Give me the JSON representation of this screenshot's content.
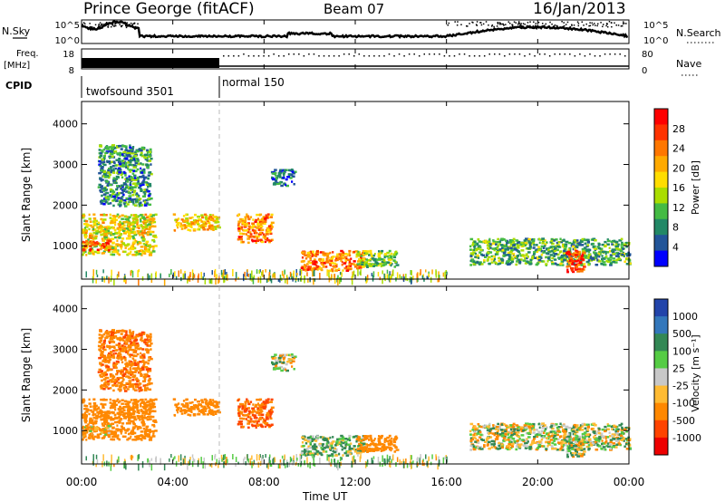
{
  "header": {
    "station": "Prince George (fitACF)",
    "beam": "Beam 07",
    "date": "16/Jan/2013"
  },
  "top_panels": {
    "nsky_label": "N.Sky",
    "nsky_ticks": [
      "10^5",
      "10^0"
    ],
    "nsearch_label": "N.Search",
    "nsearch_ticks": [
      "10^5",
      "10^0"
    ],
    "freq_label_1": "Freq.",
    "freq_label_2": "[MHz]",
    "freq_ticks": [
      "18",
      "8"
    ],
    "nave_label": "Nave",
    "nave_ticks": [
      "80",
      "0"
    ],
    "cpid_label": "CPID",
    "cpid_entries": [
      {
        "name": "twofsound 3501",
        "start_hour": 0
      },
      {
        "name": "normal 150",
        "start_hour": 6
      }
    ]
  },
  "power_panel": {
    "ylabel": "Slant Range [km]",
    "yticks": [
      "4000",
      "3000",
      "2000",
      "1000"
    ],
    "colorbar_label": "Power [dB]",
    "colorbar_ticks": [
      "28",
      "24",
      "20",
      "16",
      "12",
      "8",
      "4"
    ],
    "colors": [
      "#ff0000",
      "#ff3300",
      "#ff7700",
      "#ffaa00",
      "#ffdd00",
      "#aadd00",
      "#44bb44",
      "#228866",
      "#225599",
      "#0000ff"
    ]
  },
  "velocity_panel": {
    "ylabel": "Slant Range [km]",
    "yticks": [
      "4000",
      "3000",
      "2000",
      "1000"
    ],
    "colorbar_label": "Velocity [m s⁻¹]",
    "colorbar_ticks": [
      "1000",
      "500",
      "100",
      "25",
      "-25",
      "-100",
      "-500",
      "-1000"
    ],
    "colors": [
      "#2244aa",
      "#3377bb",
      "#338855",
      "#55cc44",
      "#c8c8c8",
      "#ffbb33",
      "#ff8800",
      "#ff4400",
      "#ee0000"
    ]
  },
  "x_axis": {
    "label": "Time UT",
    "ticks": [
      "00:00",
      "04:00",
      "08:00",
      "12:00",
      "16:00",
      "20:00",
      "00:00"
    ]
  },
  "chart_data": {
    "type": "heatmap",
    "title": "Prince George (fitACF) Beam 07 16/Jan/2013",
    "xlabel": "Time UT",
    "ylabel": "Slant Range [km]",
    "x_range_hours": [
      0,
      24
    ],
    "y_range_km": [
      180,
      4550
    ],
    "power_colorbar_range_db": [
      0,
      30
    ],
    "velocity_colorbar_range": [
      -1000,
      1000
    ],
    "scatter_regions": [
      {
        "t0": 0.0,
        "t1": 3.2,
        "r0": 800,
        "r1": 1800,
        "power_db": 16,
        "velocity": -300
      },
      {
        "t0": 0.0,
        "t1": 1.2,
        "r0": 900,
        "r1": 1150,
        "power_db": 25,
        "velocity": -100
      },
      {
        "t0": 0.7,
        "t1": 3.0,
        "r0": 2000,
        "r1": 3500,
        "power_db": 8,
        "velocity": -400
      },
      {
        "t0": 4.0,
        "t1": 6.0,
        "r0": 1400,
        "r1": 1800,
        "power_db": 18,
        "velocity": -300
      },
      {
        "t0": 6.8,
        "t1": 8.3,
        "r0": 1100,
        "r1": 1800,
        "power_db": 22,
        "velocity": -500
      },
      {
        "t0": 8.3,
        "t1": 9.3,
        "r0": 2500,
        "r1": 2900,
        "power_db": 6,
        "velocity": 0
      },
      {
        "t0": 9.6,
        "t1": 12.4,
        "r0": 400,
        "r1": 900,
        "power_db": 22,
        "velocity": 100
      },
      {
        "t0": 12.0,
        "t1": 13.8,
        "r0": 500,
        "r1": 900,
        "power_db": 12,
        "velocity": -300
      },
      {
        "t0": 17.0,
        "t1": 24.0,
        "r0": 550,
        "r1": 1200,
        "power_db": 10,
        "velocity": 0
      },
      {
        "t0": 21.2,
        "t1": 22.0,
        "r0": 380,
        "r1": 900,
        "power_db": 26,
        "velocity": 0
      }
    ]
  }
}
